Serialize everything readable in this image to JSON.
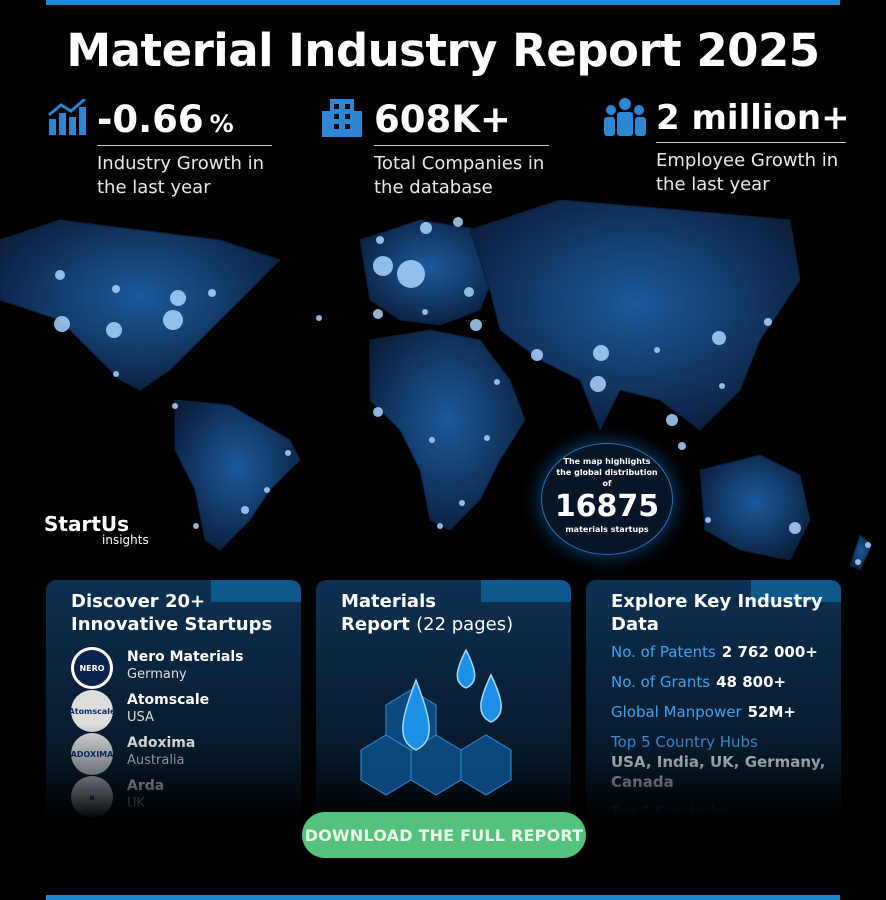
{
  "header": {
    "title": "Material Industry Report 2025"
  },
  "stats": [
    {
      "value": "-0.66",
      "unit": "%",
      "label": "Industry Growth in the last year"
    },
    {
      "value": "608K+",
      "label": "Total Companies in the database"
    },
    {
      "value": "2 million+",
      "label": "Employee Growth in the last year"
    }
  ],
  "brand": {
    "name": "StartUs",
    "sub": "insights"
  },
  "map_badge": {
    "lead": "The map highlights the global distribution of",
    "number": "16875",
    "tail": "materials startups"
  },
  "cards": {
    "startups": {
      "title": "Discover 20+ Innovative Startups",
      "items": [
        {
          "logo": "NERO",
          "name": "Nero Materials",
          "country": "Germany"
        },
        {
          "logo": "Atomscale",
          "name": "Atomscale",
          "country": "USA"
        },
        {
          "logo": "ADOXIMA",
          "name": "Adoxima",
          "country": "Australia"
        },
        {
          "logo": "a",
          "name": "Arda",
          "country": "UK"
        }
      ]
    },
    "report": {
      "title": "Materials",
      "title2": "Report",
      "pages": "(22 pages)"
    },
    "data": {
      "title": "Explore Key Industry Data",
      "rows": [
        {
          "label": "No. of Patents",
          "value": "2 762 000+"
        },
        {
          "label": "No. of Grants",
          "value": "48 800+"
        },
        {
          "label": "Global Manpower",
          "value": "52M+"
        },
        {
          "label": "Top 5 Country Hubs",
          "value": "USA, India, UK, Germany, Canada"
        },
        {
          "label": "Top 5 City Hubs"
        }
      ]
    }
  },
  "button": {
    "label": "DOWNLOAD THE FULL REPORT"
  }
}
